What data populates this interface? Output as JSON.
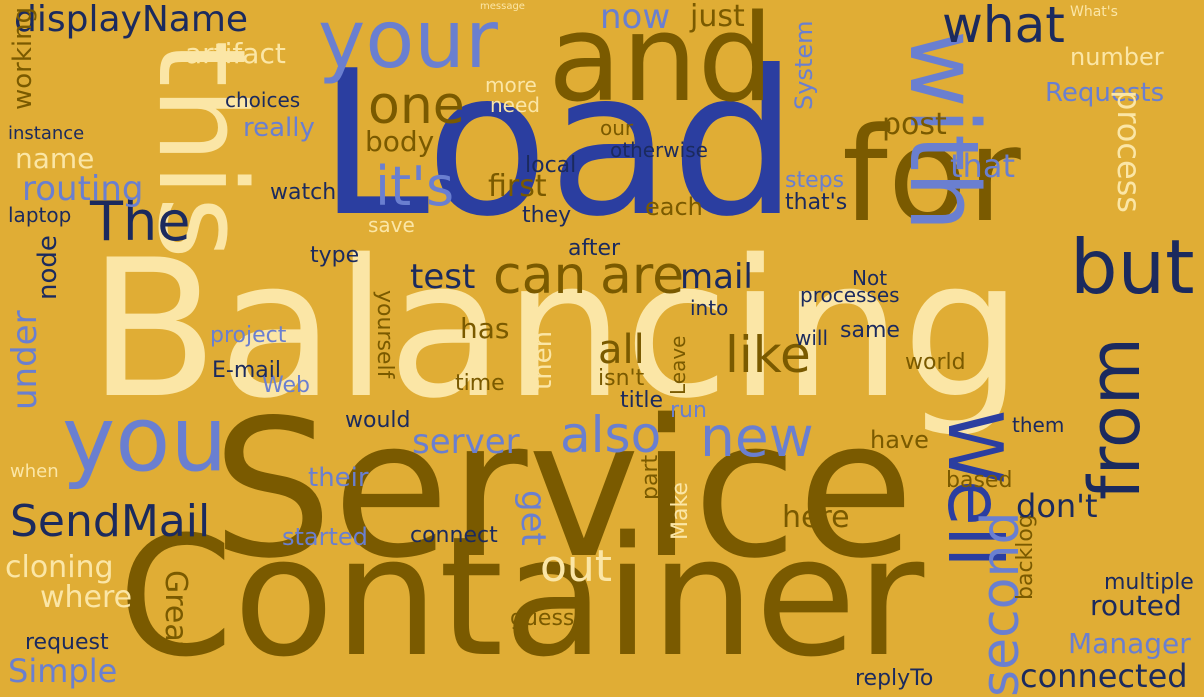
{
  "words": {
    "service": "Service",
    "balancing": "Balancing",
    "load": "Load",
    "container": "Container",
    "this": "this",
    "and": "and",
    "for": "for",
    "your": "your",
    "with": "with",
    "you": "you",
    "well": "Well",
    "from": "from",
    "but": "but",
    "sendmail": "SendMail",
    "also": "also",
    "new": "new",
    "can": "can",
    "are": "are",
    "one": "one",
    "what": "what",
    "the": "The",
    "routing": "routing",
    "its": "it's",
    "second": "second",
    "like": "like",
    "out": "out",
    "test": "test",
    "mail": "mail",
    "server": "server",
    "displayname": "displayName",
    "now": "now",
    "just": "just",
    "artifact": "artifact",
    "choices": "choices",
    "really": "really",
    "name": "name",
    "laptop": "laptop",
    "node": "node",
    "under": "under",
    "cloning": "cloning",
    "where": "where",
    "simple": "Simple",
    "request": "request",
    "great": "Great",
    "manager": "Manager",
    "connected": "connected",
    "routed": "routed",
    "multiple": "multiple",
    "backlog": "backlog",
    "dont": "don't",
    "here": "here",
    "get": "get",
    "connect": "connect",
    "started": "started",
    "their": "their",
    "web": "Web",
    "email": "E-mail",
    "project": "project",
    "requests": "Requests",
    "number": "number",
    "process": "process",
    "system": "System",
    "post": "post",
    "that": "that",
    "body": "body",
    "first": "first",
    "each": "each",
    "steps": "steps",
    "thats": "that's",
    "local": "local",
    "they": "they",
    "save": "save",
    "watch": "watch",
    "type": "type",
    "after": "after",
    "all": "all",
    "has": "has",
    "then": "then",
    "time": "time",
    "title": "title",
    "isnt": "isn't",
    "have": "have",
    "run": "run",
    "part": "part",
    "make": "Make",
    "guess": "guess",
    "replyto": "replyTo",
    "based": "based",
    "them": "them",
    "would": "would",
    "yourself": "yourself",
    "world": "world",
    "same": "same",
    "will": "will",
    "processes": "processes",
    "not": "Not",
    "into": "into",
    "leave": "Leave",
    "otherwise": "otherwise",
    "need": "need",
    "more": "more",
    "our": "our",
    "working": "working",
    "instance": "instance",
    "when": "when",
    "what_s": "What's",
    "message": "message"
  },
  "colors": {
    "background": "#e0ad35",
    "dark": "#7a5a00",
    "navy": "#1b2a5e",
    "blue": "#2b3ea0",
    "light_blue": "#6a7fd0",
    "cream": "#fbe6a6"
  }
}
